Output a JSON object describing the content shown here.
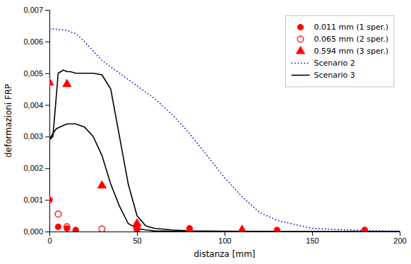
{
  "chart_data": {
    "type": "line",
    "xlabel": "distanza [mm]",
    "ylabel": "deformazioni FRP",
    "xlim": [
      0,
      200
    ],
    "ylim": [
      0,
      0.007
    ],
    "xticks": [
      0,
      50,
      100,
      150,
      200
    ],
    "yticks": [
      {
        "value": 0.0,
        "label": "0,000"
      },
      {
        "value": 0.001,
        "label": "0,001"
      },
      {
        "value": 0.002,
        "label": "0,002"
      },
      {
        "value": 0.003,
        "label": "0,003"
      },
      {
        "value": 0.004,
        "label": "0,004"
      },
      {
        "value": 0.005,
        "label": "0,005"
      },
      {
        "value": 0.006,
        "label": "0,006"
      },
      {
        "value": 0.007,
        "label": "0,007"
      }
    ],
    "grid": false,
    "legend": "upper-right",
    "series": [
      {
        "name": "0.011 mm (1 sper.)",
        "type": "scatter",
        "marker": "circle",
        "color": "#ff0000",
        "x": [
          0,
          5,
          10,
          15,
          50,
          80,
          130,
          180
        ],
        "values": [
          0.001,
          0.00015,
          0.0001,
          5e-05,
          0.0001,
          0.0001,
          5e-05,
          5e-05
        ]
      },
      {
        "name": "0.065 mm (2 sper.)",
        "type": "scatter",
        "marker": "circle-open",
        "color": "#ff0000",
        "x": [
          5,
          10,
          30,
          50
        ],
        "values": [
          0.00055,
          0.00015,
          8e-05,
          8e-05
        ]
      },
      {
        "name": "0.594 mm (3 sper.)",
        "type": "scatter",
        "marker": "triangle",
        "color": "#ff0000",
        "x": [
          0,
          10,
          30,
          50,
          80,
          110
        ],
        "values": [
          0.0047,
          0.00465,
          0.00145,
          0.00025,
          5e-05,
          5e-05
        ]
      },
      {
        "name": "Scenario 2",
        "type": "line",
        "line_style": "dotted",
        "color": "#0000cc",
        "x": [
          0,
          2,
          5,
          10,
          15,
          20,
          25,
          30,
          40,
          50,
          60,
          70,
          80,
          90,
          100,
          110,
          120,
          130,
          150,
          170,
          190,
          200
        ],
        "values": [
          0.0064,
          0.0064,
          0.00638,
          0.00635,
          0.00625,
          0.006,
          0.0057,
          0.0054,
          0.005,
          0.0046,
          0.0042,
          0.0037,
          0.0031,
          0.0024,
          0.0017,
          0.0011,
          0.0006,
          0.00035,
          0.0001,
          5e-05,
          2e-05,
          1e-05
        ]
      },
      {
        "name": "Scenario 3",
        "type": "line",
        "line_style": "solid",
        "color": "#000000",
        "x": [
          0,
          2,
          5,
          8,
          10,
          12,
          15,
          20,
          25,
          30,
          35,
          40,
          45,
          50,
          55,
          60,
          70,
          80,
          100,
          130,
          160,
          200
        ],
        "values": [
          0.0029,
          0.003,
          0.005,
          0.0051,
          0.00505,
          0.00505,
          0.005,
          0.005,
          0.005,
          0.00495,
          0.0045,
          0.003,
          0.0015,
          0.0005,
          0.00018,
          0.0001,
          5e-05,
          2e-05,
          1e-05,
          5e-06,
          3e-06,
          2e-06
        ]
      },
      {
        "type": "line",
        "line_style": "solid",
        "color": "#000000",
        "x": [
          0,
          2,
          4,
          6,
          8,
          10,
          12,
          15,
          20,
          25,
          30,
          35,
          40,
          45,
          50,
          55,
          60,
          70,
          80,
          100,
          130,
          160,
          200
        ],
        "values": [
          0.0029,
          0.0031,
          0.00325,
          0.0033,
          0.00335,
          0.0034,
          0.0034,
          0.0034,
          0.0033,
          0.003,
          0.0024,
          0.0015,
          0.0008,
          0.00025,
          0.0001,
          5e-05,
          2e-05,
          1e-05,
          5e-06,
          3e-06,
          2e-06,
          1e-06,
          5e-07
        ]
      }
    ]
  }
}
